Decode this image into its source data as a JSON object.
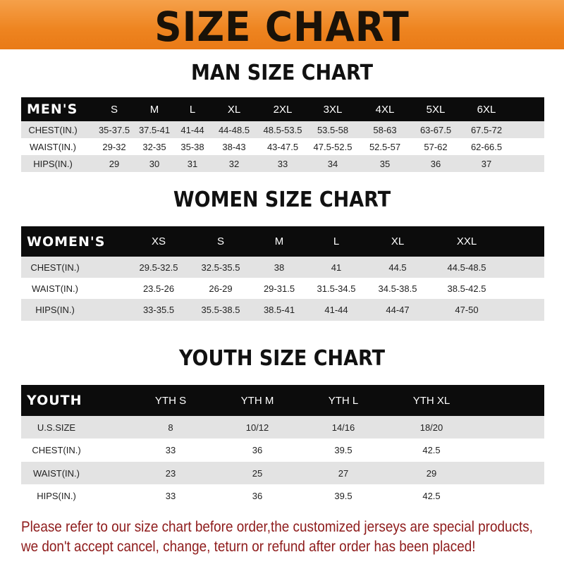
{
  "banner_title": "SIZE CHART",
  "tables": [
    {
      "title": "MAN SIZE CHART",
      "header": [
        "MEN'S",
        "S",
        "M",
        "L",
        "XL",
        "2XL",
        "3XL",
        "4XL",
        "5XL",
        "6XL"
      ],
      "rows": [
        [
          "CHEST(IN.)",
          "35-37.5",
          "37.5-41",
          "41-44",
          "44-48.5",
          "48.5-53.5",
          "53.5-58",
          "58-63",
          "63-67.5",
          "67.5-72"
        ],
        [
          "WAIST(IN.)",
          "29-32",
          "32-35",
          "35-38",
          "38-43",
          "43-47.5",
          "47.5-52.5",
          "52.5-57",
          "57-62",
          "62-66.5"
        ],
        [
          "HIPS(IN.)",
          "29",
          "30",
          "31",
          "32",
          "33",
          "34",
          "35",
          "36",
          "37"
        ]
      ]
    },
    {
      "title": "WOMEN SIZE CHART",
      "header": [
        "WOMEN'S",
        "XS",
        "S",
        "M",
        "L",
        "XL",
        "XXL"
      ],
      "rows": [
        [
          "CHEST(IN.)",
          "29.5-32.5",
          "32.5-35.5",
          "38",
          "41",
          "44.5",
          "44.5-48.5"
        ],
        [
          "WAIST(IN.)",
          "23.5-26",
          "26-29",
          "29-31.5",
          "31.5-34.5",
          "34.5-38.5",
          "38.5-42.5"
        ],
        [
          "HIPS(IN.)",
          "33-35.5",
          "35.5-38.5",
          "38.5-41",
          "41-44",
          "44-47",
          "47-50"
        ]
      ]
    },
    {
      "title": "YOUTH SIZE CHART",
      "header": [
        "YOUTH",
        "YTH S",
        "YTH M",
        "YTH L",
        "YTH XL"
      ],
      "rows": [
        [
          "U.S.SIZE",
          "8",
          "10/12",
          "14/16",
          "18/20"
        ],
        [
          "CHEST(IN.)",
          "33",
          "36",
          "39.5",
          "42.5"
        ],
        [
          "WAIST(IN.)",
          "23",
          "25",
          "27",
          "29"
        ],
        [
          "HIPS(IN.)",
          "33",
          "36",
          "39.5",
          "42.5"
        ]
      ]
    }
  ],
  "notice": [
    "Please refer to our size chart before order,the customized jerseys are special products,",
    "we don't accept cancel, change, teturn or refund after order has been placed!"
  ],
  "colors": {
    "banner": "#ee8420",
    "header_row": "#0c0c0c",
    "stripe": "#e3e3e3",
    "notice": "#8e1b1b"
  }
}
